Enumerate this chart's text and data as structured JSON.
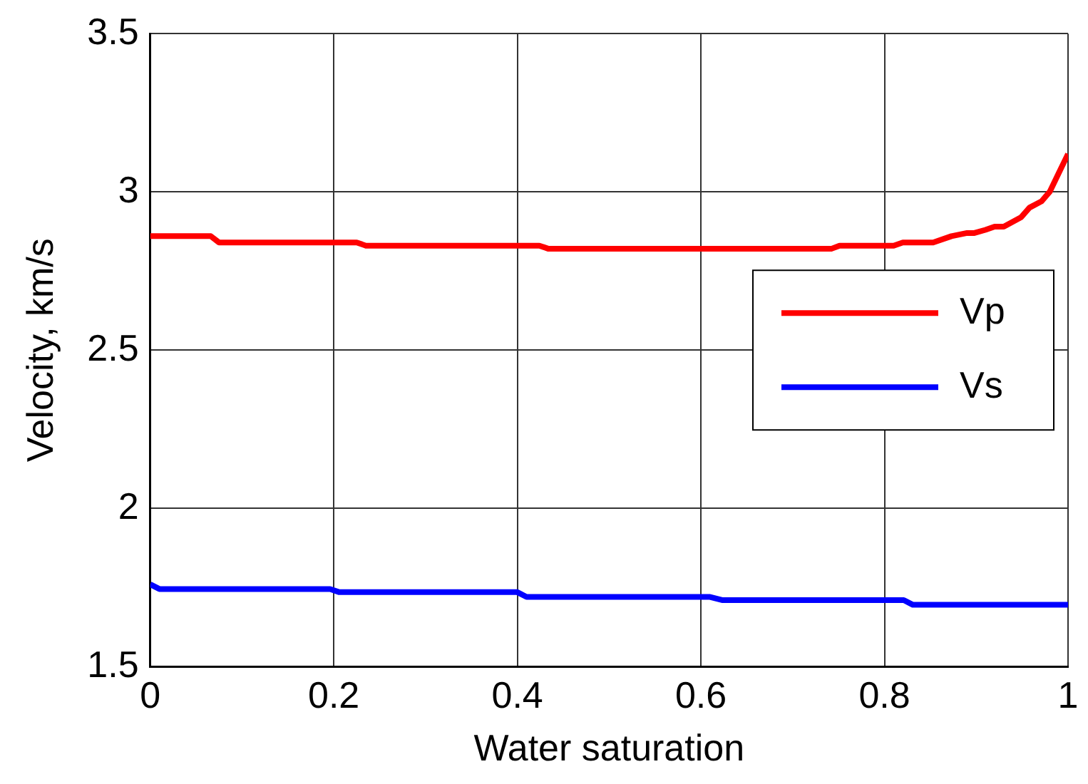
{
  "chart_data": {
    "type": "line",
    "xlabel": "Water saturation",
    "ylabel": "Velocity, km/s",
    "xlim": [
      0,
      1
    ],
    "xticks": [
      0,
      0.2,
      0.4,
      0.6,
      0.8,
      1
    ],
    "ylim": [
      1.5,
      3.5
    ],
    "yticks": [
      1.5,
      2,
      2.5,
      3,
      3.5
    ],
    "grid": true,
    "legend": "right",
    "line_style": "solid",
    "marker": "none",
    "series": [
      {
        "name": "Vp",
        "color": "#ff0000",
        "x": [
          0,
          0.066,
          0.075,
          0.225,
          0.235,
          0.424,
          0.434,
          0.742,
          0.751,
          0.81,
          0.82,
          0.853,
          0.873,
          0.89,
          0.898,
          0.91,
          0.92,
          0.93,
          0.949,
          0.958,
          0.971,
          0.98,
          0.99,
          1
        ],
        "values": [
          2.86,
          2.86,
          2.84,
          2.84,
          2.83,
          2.83,
          2.82,
          2.82,
          2.83,
          2.83,
          2.84,
          2.84,
          2.86,
          2.87,
          2.87,
          2.88,
          2.89,
          2.89,
          2.92,
          2.95,
          2.97,
          3.0,
          3.06,
          3.12
        ]
      },
      {
        "name": "Vs",
        "color": "#0000ff",
        "x": [
          0,
          0.01,
          0.196,
          0.206,
          0.4,
          0.41,
          0.61,
          0.623,
          0.821,
          0.831,
          1
        ],
        "values": [
          1.76,
          1.745,
          1.745,
          1.735,
          1.735,
          1.72,
          1.72,
          1.71,
          1.71,
          1.695,
          1.695
        ]
      }
    ]
  }
}
